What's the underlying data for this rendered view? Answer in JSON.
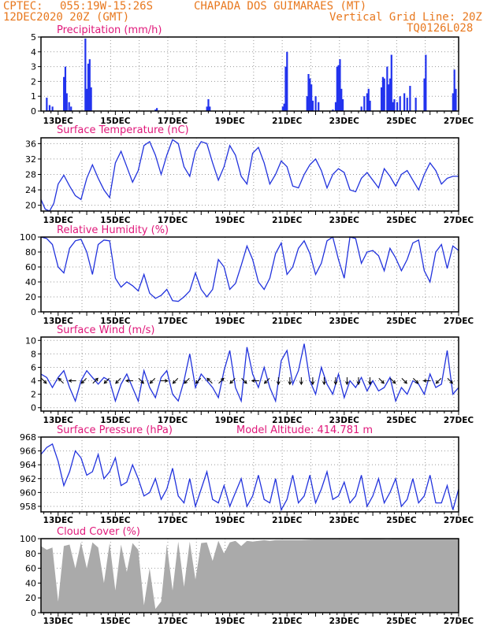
{
  "header": {
    "source": "CPTEC:",
    "coords": "055:19W-15:26S",
    "location": "CHAPADA DOS GUIMARAES (MT)",
    "datetime": "12DEC2020 20Z (GMT)",
    "grid_note": "Vertical Grid Line: 20Z",
    "model_code": "TQ0126L028"
  },
  "colors": {
    "header": "#e8781e",
    "title": "#e0187a",
    "line": "#2233dd",
    "bar": "#2233ee",
    "cloud": "#aaaaaa",
    "grid": "#999999",
    "arrow": "#000000"
  },
  "x_tick_labels": [
    "13DEC",
    "15DEC",
    "17DEC",
    "19DEC",
    "21DEC",
    "23DEC",
    "25DEC",
    "27DEC"
  ],
  "x_tick_days": [
    13,
    15,
    17,
    19,
    21,
    23,
    25,
    27
  ],
  "x_range_days": [
    12.4,
    27.0
  ],
  "chart_data": [
    {
      "id": "precip",
      "type": "bar",
      "title": "Precipitation (mm/h)",
      "ylim": [
        0,
        5
      ],
      "yticks": [
        0,
        1,
        2,
        3,
        4,
        5
      ],
      "x": [
        12.6,
        12.7,
        12.8,
        13.2,
        13.25,
        13.3,
        13.38,
        13.45,
        13.95,
        14.0,
        14.05,
        14.1,
        14.15,
        16.4,
        16.45,
        18.2,
        18.25,
        18.3,
        20.85,
        20.9,
        20.95,
        21.0,
        21.7,
        21.75,
        21.8,
        21.85,
        21.9,
        22.0,
        22.1,
        22.6,
        22.7,
        22.75,
        22.8,
        22.85,
        22.9,
        22.95,
        23.6,
        23.7,
        23.8,
        23.85,
        23.9,
        24.3,
        24.35,
        24.4,
        24.5,
        24.55,
        24.6,
        24.65,
        24.7,
        24.75,
        24.85,
        24.95,
        25.1,
        25.2,
        25.3,
        25.5,
        25.8,
        25.85,
        26.8,
        26.85,
        26.9
      ],
      "values": [
        0.9,
        0.4,
        0.3,
        2.3,
        3.0,
        1.2,
        0.6,
        0.3,
        4.9,
        1.5,
        3.2,
        3.5,
        1.6,
        0.1,
        0.2,
        0.3,
        0.8,
        0.3,
        0.3,
        0.5,
        3.0,
        4.0,
        1.0,
        2.5,
        2.2,
        1.8,
        0.7,
        1.0,
        0.6,
        0.1,
        0.6,
        3.0,
        3.1,
        3.5,
        1.5,
        0.8,
        0.3,
        1.0,
        1.2,
        1.5,
        0.7,
        1.6,
        2.3,
        2.2,
        3.0,
        1.8,
        2.2,
        3.8,
        0.6,
        0.8,
        0.6,
        1.0,
        1.2,
        0.9,
        1.7,
        0.9,
        2.2,
        3.8,
        1.2,
        2.8,
        1.5
      ],
      "xlabel": "",
      "ylabel": ""
    },
    {
      "id": "temp",
      "type": "line",
      "title": "Surface Temperature (nC)",
      "ylim": [
        18.5,
        37.5
      ],
      "yticks": [
        20,
        24,
        28,
        32,
        36
      ],
      "x": [
        12.4,
        12.55,
        12.7,
        12.85,
        13.0,
        13.2,
        13.4,
        13.6,
        13.8,
        14.0,
        14.2,
        14.4,
        14.6,
        14.8,
        15.0,
        15.2,
        15.4,
        15.6,
        15.8,
        16.0,
        16.2,
        16.4,
        16.6,
        16.8,
        17.0,
        17.2,
        17.4,
        17.6,
        17.8,
        18.0,
        18.2,
        18.4,
        18.6,
        18.8,
        19.0,
        19.2,
        19.4,
        19.6,
        19.8,
        20.0,
        20.2,
        20.4,
        20.6,
        20.8,
        21.0,
        21.2,
        21.4,
        21.6,
        21.8,
        22.0,
        22.2,
        22.4,
        22.6,
        22.8,
        23.0,
        23.2,
        23.4,
        23.6,
        23.8,
        24.0,
        24.2,
        24.4,
        24.6,
        24.8,
        25.0,
        25.2,
        25.4,
        25.6,
        25.8,
        26.0,
        26.2,
        26.4,
        26.6,
        26.8,
        27.0
      ],
      "y": [
        21.5,
        19.0,
        18.5,
        20.5,
        25.5,
        27.8,
        25.0,
        22.5,
        21.5,
        27.0,
        30.5,
        27.0,
        24.0,
        22.0,
        31.0,
        34.0,
        30.0,
        26.0,
        29.0,
        35.5,
        36.5,
        33.0,
        28.0,
        33.0,
        37.0,
        36.0,
        30.0,
        27.5,
        34.0,
        36.5,
        36.0,
        31.0,
        26.5,
        30.0,
        35.5,
        33.0,
        27.5,
        25.5,
        33.5,
        35.0,
        31.0,
        25.5,
        28.0,
        31.5,
        30.0,
        25.0,
        24.5,
        28.0,
        30.5,
        32.0,
        29.0,
        24.5,
        28.0,
        29.5,
        28.5,
        24.0,
        23.5,
        27.0,
        28.5,
        26.5,
        24.5,
        29.5,
        27.5,
        25.0,
        28.0,
        29.0,
        26.5,
        24.0,
        28.0,
        31.0,
        29.0,
        25.5,
        27.0,
        27.5,
        27.5
      ],
      "xlabel": "",
      "ylabel": ""
    },
    {
      "id": "rh",
      "type": "line",
      "title": "Relative Humidity (%)",
      "ylim": [
        0,
        100
      ],
      "yticks": [
        0,
        20,
        40,
        60,
        80,
        100
      ],
      "x": [
        12.4,
        12.6,
        12.8,
        13.0,
        13.2,
        13.4,
        13.6,
        13.8,
        14.0,
        14.2,
        14.4,
        14.6,
        14.8,
        15.0,
        15.2,
        15.4,
        15.6,
        15.8,
        16.0,
        16.2,
        16.4,
        16.6,
        16.8,
        17.0,
        17.2,
        17.4,
        17.6,
        17.8,
        18.0,
        18.2,
        18.4,
        18.6,
        18.8,
        19.0,
        19.2,
        19.4,
        19.6,
        19.8,
        20.0,
        20.2,
        20.4,
        20.6,
        20.8,
        21.0,
        21.2,
        21.4,
        21.6,
        21.8,
        22.0,
        22.2,
        22.4,
        22.6,
        22.8,
        23.0,
        23.2,
        23.4,
        23.6,
        23.8,
        24.0,
        24.2,
        24.4,
        24.6,
        24.8,
        25.0,
        25.2,
        25.4,
        25.6,
        25.8,
        26.0,
        26.2,
        26.4,
        26.6,
        26.8,
        27.0
      ],
      "y": [
        100,
        98,
        90,
        60,
        52,
        85,
        95,
        97,
        80,
        50,
        90,
        96,
        95,
        45,
        33,
        40,
        35,
        28,
        50,
        25,
        18,
        22,
        30,
        15,
        14,
        20,
        28,
        52,
        30,
        20,
        30,
        70,
        60,
        30,
        38,
        62,
        88,
        70,
        40,
        30,
        45,
        78,
        92,
        50,
        60,
        85,
        95,
        78,
        50,
        65,
        95,
        100,
        70,
        45,
        100,
        98,
        65,
        80,
        82,
        75,
        55,
        85,
        72,
        55,
        70,
        92,
        96,
        55,
        40,
        80,
        90,
        58,
        88,
        82
      ],
      "xlabel": "",
      "ylabel": ""
    },
    {
      "id": "wind",
      "type": "line",
      "title": "Surface Wind (m/s)",
      "ylim": [
        -0.5,
        10.5
      ],
      "yticks": [
        0,
        2,
        4,
        6,
        8,
        10
      ],
      "x": [
        12.4,
        12.6,
        12.8,
        13.0,
        13.2,
        13.4,
        13.6,
        13.8,
        14.0,
        14.2,
        14.4,
        14.6,
        14.8,
        15.0,
        15.2,
        15.4,
        15.6,
        15.8,
        16.0,
        16.2,
        16.4,
        16.6,
        16.8,
        17.0,
        17.2,
        17.4,
        17.6,
        17.8,
        18.0,
        18.2,
        18.4,
        18.6,
        18.8,
        19.0,
        19.2,
        19.4,
        19.6,
        19.8,
        20.0,
        20.2,
        20.4,
        20.6,
        20.8,
        21.0,
        21.2,
        21.4,
        21.6,
        21.8,
        22.0,
        22.2,
        22.4,
        22.6,
        22.8,
        23.0,
        23.2,
        23.4,
        23.6,
        23.8,
        24.0,
        24.2,
        24.4,
        24.6,
        24.8,
        25.0,
        25.2,
        25.4,
        25.6,
        25.8,
        26.0,
        26.2,
        26.4,
        26.6,
        26.8,
        27.0
      ],
      "y": [
        5.0,
        4.5,
        3.0,
        4.5,
        5.5,
        3.0,
        1.0,
        4.0,
        5.5,
        4.5,
        3.5,
        4.5,
        4.0,
        1.0,
        3.5,
        5.0,
        3.0,
        1.0,
        5.5,
        3.0,
        1.5,
        4.5,
        5.5,
        2.0,
        1.0,
        4.0,
        8.0,
        3.0,
        5.0,
        4.0,
        3.0,
        1.5,
        5.5,
        8.5,
        3.0,
        1.0,
        9.0,
        5.0,
        3.0,
        6.0,
        3.0,
        1.0,
        7.0,
        8.5,
        3.5,
        5.5,
        9.5,
        4.0,
        2.0,
        6.0,
        3.5,
        2.0,
        5.0,
        1.5,
        4.0,
        3.0,
        4.5,
        2.5,
        4.0,
        2.5,
        3.0,
        4.5,
        1.0,
        3.0,
        2.0,
        4.0,
        3.5,
        2.0,
        5.0,
        3.0,
        3.5,
        8.5,
        2.0,
        3.0
      ],
      "xlabel": "",
      "ylabel": ""
    },
    {
      "id": "pressure",
      "type": "line",
      "title": "Surface Pressure (hPa)",
      "subtitle": "Model Altitude: 414.781 m",
      "ylim": [
        957.2,
        968.0
      ],
      "yticks": [
        958,
        960,
        962,
        964,
        966,
        968
      ],
      "x": [
        12.4,
        12.6,
        12.8,
        13.0,
        13.2,
        13.4,
        13.6,
        13.8,
        14.0,
        14.2,
        14.4,
        14.6,
        14.8,
        15.0,
        15.2,
        15.4,
        15.6,
        15.8,
        16.0,
        16.2,
        16.4,
        16.6,
        16.8,
        17.0,
        17.2,
        17.4,
        17.6,
        17.8,
        18.0,
        18.2,
        18.4,
        18.6,
        18.8,
        19.0,
        19.2,
        19.4,
        19.6,
        19.8,
        20.0,
        20.2,
        20.4,
        20.6,
        20.8,
        21.0,
        21.2,
        21.4,
        21.6,
        21.8,
        22.0,
        22.2,
        22.4,
        22.6,
        22.8,
        23.0,
        23.2,
        23.4,
        23.6,
        23.8,
        24.0,
        24.2,
        24.4,
        24.6,
        24.8,
        25.0,
        25.2,
        25.4,
        25.6,
        25.8,
        26.0,
        26.2,
        26.4,
        26.6,
        26.8,
        27.0
      ],
      "y": [
        965.5,
        966.5,
        967.0,
        964.5,
        961.0,
        963.0,
        966.0,
        965.0,
        962.5,
        963.0,
        965.5,
        962.0,
        963.0,
        965.0,
        961.0,
        961.5,
        964.0,
        962.0,
        959.5,
        960.0,
        962.0,
        959.0,
        960.5,
        963.5,
        959.5,
        958.5,
        962.0,
        958.0,
        960.5,
        963.0,
        959.0,
        958.5,
        961.0,
        958.0,
        960.0,
        962.0,
        958.0,
        959.5,
        962.5,
        959.0,
        958.5,
        962.0,
        957.5,
        959.0,
        962.5,
        958.5,
        959.5,
        962.5,
        958.5,
        960.5,
        963.0,
        959.0,
        959.5,
        961.5,
        958.5,
        959.5,
        962.5,
        958.0,
        959.5,
        962.0,
        958.5,
        960.0,
        962.0,
        958.0,
        959.0,
        962.0,
        958.5,
        959.5,
        962.5,
        958.5,
        958.5,
        961.0,
        957.5,
        960.5
      ],
      "xlabel": "",
      "ylabel": ""
    },
    {
      "id": "cloud",
      "type": "area",
      "title": "Cloud Cover (%)",
      "ylim": [
        0,
        100
      ],
      "yticks": [
        0,
        20,
        40,
        60,
        80,
        100
      ],
      "x": [
        12.4,
        12.6,
        12.8,
        13.0,
        13.2,
        13.4,
        13.6,
        13.8,
        14.0,
        14.2,
        14.4,
        14.6,
        14.8,
        15.0,
        15.2,
        15.4,
        15.6,
        15.8,
        16.0,
        16.2,
        16.4,
        16.6,
        16.8,
        17.0,
        17.2,
        17.4,
        17.6,
        17.8,
        18.0,
        18.2,
        18.4,
        18.6,
        18.8,
        19.0,
        19.2,
        19.4,
        19.6,
        19.8,
        20.0,
        20.2,
        20.4,
        20.6,
        20.8,
        21.0,
        21.5,
        22.0,
        22.5,
        23.0,
        23.5,
        24.0,
        24.5,
        25.0,
        25.5,
        26.0,
        26.5,
        27.0
      ],
      "y": [
        90,
        85,
        88,
        15,
        90,
        92,
        60,
        95,
        60,
        95,
        88,
        40,
        94,
        30,
        92,
        55,
        94,
        85,
        10,
        60,
        5,
        15,
        92,
        30,
        96,
        35,
        96,
        45,
        94,
        95,
        70,
        97,
        80,
        95,
        97,
        90,
        97,
        96,
        97,
        98,
        97,
        98,
        98,
        98,
        98,
        99,
        99,
        99,
        99,
        100,
        99,
        100,
        100,
        100,
        100,
        100
      ],
      "xlabel": "",
      "ylabel": ""
    }
  ],
  "wind_arrows": {
    "x": [
      12.5,
      13.1,
      13.5,
      13.9,
      14.3,
      14.7,
      15.1,
      15.5,
      15.9,
      16.3,
      16.7,
      17.1,
      17.5,
      17.9,
      18.3,
      18.7,
      19.1,
      19.5,
      19.9,
      20.3,
      20.7,
      21.1,
      21.5,
      21.9,
      22.3,
      22.7,
      23.1,
      23.5,
      23.9,
      24.3,
      24.7,
      25.1,
      25.5,
      25.9,
      26.3,
      26.7
    ],
    "u": [
      1,
      -1,
      -1,
      -1,
      1,
      -1,
      -1,
      -1,
      1,
      -1,
      1,
      -1,
      -1,
      -1,
      -1,
      1,
      -1,
      1,
      -1,
      -1,
      0,
      0,
      0,
      0,
      0,
      0,
      0,
      0,
      0,
      1,
      1,
      1,
      1,
      -1,
      -1,
      1
    ],
    "v": [
      -1,
      1,
      0,
      -1,
      1,
      -1,
      -1,
      0,
      -1,
      -1,
      0,
      -1,
      -1,
      -1,
      1,
      1,
      -1,
      -1,
      0,
      -1,
      -1,
      -1,
      -1,
      -1,
      -1,
      -1,
      -1,
      -1,
      -1,
      -1,
      -1,
      -1,
      -1,
      0,
      -1,
      -1
    ]
  }
}
